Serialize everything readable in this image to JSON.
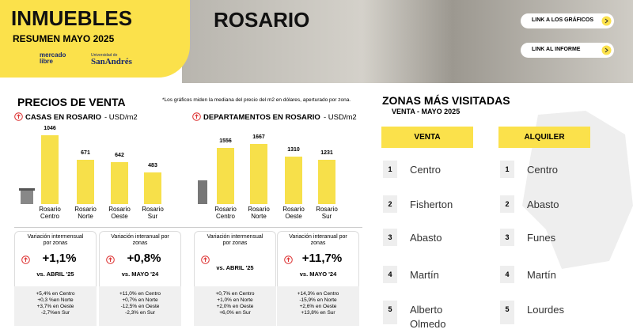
{
  "header": {
    "title": "INMUEBLES",
    "subtitle": "RESUMEN MAYO 2025",
    "logo_1": "mercado libre",
    "logo_2_small": "Universidad de",
    "logo_2": "SanAndrés",
    "city": "ROSARIO",
    "buttons": [
      "LINK A LOS GRÁFICOS",
      "LINK AL INFORME"
    ]
  },
  "precios": {
    "title": "PRECIOS DE VENTA",
    "note": "*Los gráficos miden  la mediana del precio del m2 en dólares, aperturado por zona."
  },
  "chart_data": [
    {
      "type": "bar",
      "title": "CASAS EN ROSARIO",
      "unit": "- USD/m2",
      "categories": [
        "Rosario Centro",
        "Rosario Norte",
        "Rosario Oeste",
        "Rosario Sur"
      ],
      "values": [
        1046,
        671,
        642,
        483
      ],
      "color": "#f7e04a",
      "ylim": [
        0,
        1200
      ]
    },
    {
      "type": "bar",
      "title": "DEPARTAMENTOS EN ROSARIO",
      "unit": "- USD/m2",
      "categories": [
        "Rosario Centro",
        "Rosario Norte",
        "Rosario Oeste",
        "Rosario Sur"
      ],
      "values": [
        1556,
        1667,
        1310,
        1231
      ],
      "color": "#f7e04a",
      "ylim": [
        0,
        2200
      ]
    }
  ],
  "variaciones": [
    {
      "label": "Variación intermensual por zonas",
      "value": "+1,1%",
      "ref": "vs. ABRIL '25",
      "details": [
        "+5,4% en Centro",
        "+0,3 %en Norte",
        "+3,7% en Oeste",
        "-2,7%en Sur"
      ]
    },
    {
      "label": "Variación interanual por zonas",
      "value": "+0,8%",
      "ref": "vs. MAYO '24",
      "details": [
        "+11,0% en Centro",
        "+0,7% en Norte",
        "-12,5% en Oeste",
        "-2,3% en Sur"
      ]
    },
    {
      "label": "Variación intermensual por zonas",
      "ref": "vs. ABRIL '25",
      "details": [
        "+0,7% en Centro",
        "+1,0% en Norte",
        "+2,0% en Oeste",
        "+6,0% en Sur"
      ]
    },
    {
      "label": "Variación interanual por zonas",
      "value": "+11,7%",
      "ref": "vs. MAYO '24",
      "details": [
        "+14,3% en Centro",
        "-15,9% en Norte",
        "+2,6% en Oeste",
        "+13,8% en Sur"
      ]
    }
  ],
  "zonas": {
    "title": "ZONAS MÁS VISITADAS",
    "subtitle": "VENTA - MAYO 2025",
    "columns": [
      {
        "header": "VENTA",
        "items": [
          {
            "rank": 1,
            "name": "Centro"
          },
          {
            "rank": 2,
            "name": "Fisherton"
          },
          {
            "rank": 3,
            "name": "Abasto"
          },
          {
            "rank": 4,
            "name": "Martín"
          },
          {
            "rank": 5,
            "name": "Alberto Olmedo"
          }
        ]
      },
      {
        "header": "ALQUILER",
        "items": [
          {
            "rank": 1,
            "name": "Centro"
          },
          {
            "rank": 2,
            "name": "Abasto"
          },
          {
            "rank": 3,
            "name": "Funes"
          },
          {
            "rank": 4,
            "name": "Martín"
          },
          {
            "rank": 5,
            "name": "Lourdes"
          }
        ]
      }
    ]
  }
}
